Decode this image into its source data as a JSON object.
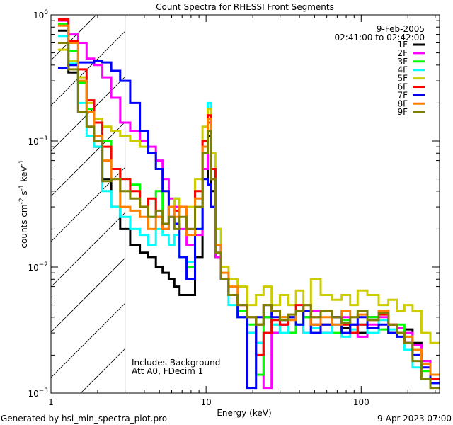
{
  "chart_data": {
    "type": "line",
    "title": "Count Spectra for RHESSI Front Segments",
    "xlabel": "Energy (keV)",
    "ylabel": {
      "base": "counts cm",
      "e1": "-2",
      "mid1": " s",
      "e2": "-1",
      "mid2": " keV",
      "e3": "-1"
    },
    "xscale": "log",
    "yscale": "log",
    "xlim": [
      1,
      320
    ],
    "ylim": [
      0.001,
      1
    ],
    "xticks": [
      {
        "v": 1,
        "label": "1"
      },
      {
        "v": 10,
        "label": "10"
      },
      {
        "v": 100,
        "label": "100"
      }
    ],
    "yticks": [
      {
        "v": 1,
        "exp": "0"
      },
      {
        "v": 0.1,
        "exp": "−1"
      },
      {
        "v": 0.01,
        "exp": "−2"
      },
      {
        "v": 0.001,
        "exp": "−3"
      }
    ],
    "ytick_base": "10",
    "date": "9-Feb-2005",
    "time_range": "02:41:00 to 02:42:00",
    "annotations": [
      "Includes Background",
      "Att A0, FDecim 1"
    ],
    "excluded_below_keV": 3,
    "legend_position": "top-right",
    "x": [
      1.2,
      1.4,
      1.6,
      1.8,
      2.0,
      2.3,
      2.6,
      3.0,
      3.5,
      4.0,
      4.5,
      5.0,
      5.5,
      6.0,
      6.5,
      7.0,
      8.0,
      9.0,
      10.0,
      10.5,
      11.0,
      12.0,
      13.0,
      15.0,
      17.0,
      20.0,
      22.0,
      25.0,
      28.0,
      32.0,
      36.0,
      40.0,
      45.0,
      50.0,
      60.0,
      70.0,
      80.0,
      90.0,
      100,
      120,
      140,
      160,
      180,
      200,
      230,
      260,
      300
    ],
    "series": [
      {
        "name": "1F",
        "color": "#000000",
        "values": [
          0.75,
          0.35,
          0.17,
          0.17,
          0.09,
          0.05,
          0.03,
          0.02,
          0.015,
          0.013,
          0.012,
          0.01,
          0.009,
          0.008,
          0.007,
          0.006,
          0.006,
          0.012,
          0.05,
          0.11,
          0.04,
          0.012,
          0.008,
          0.006,
          0.004,
          0.003,
          0.0035,
          0.004,
          0.003,
          0.0035,
          0.003,
          0.0045,
          0.004,
          0.0035,
          0.003,
          0.004,
          0.0033,
          0.0035,
          0.003,
          0.004,
          0.0045,
          0.0035,
          0.003,
          0.0032,
          0.0025,
          0.0018,
          0.0013
        ]
      },
      {
        "name": "2F",
        "color": "#ff00ff",
        "values": [
          0.9,
          0.7,
          0.6,
          0.45,
          0.4,
          0.32,
          0.22,
          0.14,
          0.12,
          0.1,
          0.09,
          0.07,
          0.05,
          0.035,
          0.03,
          0.02,
          0.015,
          0.018,
          0.06,
          0.14,
          0.05,
          0.012,
          0.008,
          0.006,
          0.005,
          0.003,
          0.0025,
          0.0011,
          0.003,
          0.0035,
          0.004,
          0.0035,
          0.003,
          0.0045,
          0.003,
          0.0035,
          0.004,
          0.003,
          0.0028,
          0.0035,
          0.004,
          0.003,
          0.0033,
          0.003,
          0.0024,
          0.0018,
          0.0014
        ]
      },
      {
        "name": "3F",
        "color": "#00ff00",
        "values": [
          0.85,
          0.52,
          0.29,
          0.18,
          0.14,
          0.1,
          0.06,
          0.05,
          0.045,
          0.03,
          0.025,
          0.04,
          0.02,
          0.03,
          0.035,
          0.012,
          0.01,
          0.02,
          0.08,
          0.15,
          0.06,
          0.02,
          0.008,
          0.006,
          0.0045,
          0.0035,
          0.0014,
          0.004,
          0.0035,
          0.004,
          0.003,
          0.0035,
          0.004,
          0.003,
          0.0035,
          0.003,
          0.0038,
          0.003,
          0.0035,
          0.004,
          0.0032,
          0.003,
          0.0035,
          0.0028,
          0.0022,
          0.0015,
          0.0013
        ]
      },
      {
        "name": "4F",
        "color": "#00ffff",
        "values": [
          0.68,
          0.41,
          0.2,
          0.11,
          0.09,
          0.04,
          0.03,
          0.025,
          0.02,
          0.018,
          0.015,
          0.02,
          0.018,
          0.015,
          0.018,
          0.012,
          0.011,
          0.02,
          0.1,
          0.2,
          0.05,
          0.015,
          0.008,
          0.005,
          0.004,
          0.003,
          0.0025,
          0.003,
          0.0035,
          0.003,
          0.004,
          0.0035,
          0.003,
          0.0033,
          0.003,
          0.0035,
          0.0028,
          0.0032,
          0.0035,
          0.003,
          0.0038,
          0.0032,
          0.0028,
          0.0022,
          0.0016,
          0.0013,
          0.0012
        ]
      },
      {
        "name": "5F",
        "color": "#cccc00",
        "values": [
          0.53,
          0.43,
          0.32,
          0.2,
          0.15,
          0.13,
          0.12,
          0.11,
          0.1,
          0.09,
          0.08,
          0.06,
          0.04,
          0.03,
          0.035,
          0.03,
          0.03,
          0.05,
          0.13,
          0.18,
          0.08,
          0.02,
          0.01,
          0.008,
          0.007,
          0.005,
          0.006,
          0.007,
          0.005,
          0.006,
          0.005,
          0.0065,
          0.005,
          0.008,
          0.006,
          0.0055,
          0.006,
          0.005,
          0.0065,
          0.006,
          0.005,
          0.0055,
          0.0045,
          0.005,
          0.0045,
          0.003,
          0.0025
        ]
      },
      {
        "name": "6F",
        "color": "#ff0000",
        "values": [
          0.92,
          0.62,
          0.37,
          0.21,
          0.14,
          0.09,
          0.06,
          0.05,
          0.04,
          0.03,
          0.035,
          0.025,
          0.02,
          0.03,
          0.028,
          0.03,
          0.02,
          0.04,
          0.1,
          0.16,
          0.06,
          0.015,
          0.008,
          0.006,
          0.005,
          0.004,
          0.002,
          0.003,
          0.0038,
          0.0035,
          0.004,
          0.005,
          0.0045,
          0.004,
          0.0035,
          0.004,
          0.0035,
          0.003,
          0.0035,
          0.0038,
          0.0042,
          0.0035,
          0.003,
          0.0025,
          0.0022,
          0.0017,
          0.0013
        ]
      },
      {
        "name": "7F",
        "color": "#0000ff",
        "values": [
          0.38,
          0.4,
          0.42,
          0.42,
          0.43,
          0.42,
          0.36,
          0.3,
          0.2,
          0.12,
          0.08,
          0.06,
          0.04,
          0.025,
          0.022,
          0.012,
          0.008,
          0.02,
          0.05,
          0.045,
          0.03,
          0.015,
          0.008,
          0.006,
          0.004,
          0.0011,
          0.004,
          0.005,
          0.004,
          0.0038,
          0.004,
          0.0035,
          0.0045,
          0.003,
          0.0035,
          0.004,
          0.003,
          0.0035,
          0.004,
          0.0033,
          0.0035,
          0.003,
          0.0028,
          0.0025,
          0.002,
          0.0016,
          0.0012
        ]
      },
      {
        "name": "8F",
        "color": "#ff8000",
        "values": [
          0.82,
          0.6,
          0.3,
          0.17,
          0.11,
          0.07,
          0.05,
          0.03,
          0.028,
          0.025,
          0.02,
          0.025,
          0.02,
          0.03,
          0.025,
          0.03,
          0.018,
          0.035,
          0.09,
          0.15,
          0.05,
          0.015,
          0.009,
          0.007,
          0.005,
          0.004,
          0.0035,
          0.005,
          0.0045,
          0.004,
          0.0038,
          0.0045,
          0.005,
          0.0035,
          0.004,
          0.0035,
          0.0045,
          0.004,
          0.0042,
          0.0038,
          0.0045,
          0.0035,
          0.003,
          0.0028,
          0.0022,
          0.0017,
          0.0014
        ]
      },
      {
        "name": "9F",
        "color": "#808000",
        "values": [
          0.6,
          0.37,
          0.17,
          0.13,
          0.1,
          0.048,
          0.05,
          0.04,
          0.035,
          0.03,
          0.025,
          0.028,
          0.022,
          0.025,
          0.02,
          0.025,
          0.02,
          0.03,
          0.08,
          0.12,
          0.05,
          0.013,
          0.008,
          0.006,
          0.005,
          0.004,
          0.0035,
          0.005,
          0.0045,
          0.0038,
          0.0042,
          0.0045,
          0.005,
          0.004,
          0.0045,
          0.004,
          0.0036,
          0.004,
          0.0045,
          0.0038,
          0.0043,
          0.0035,
          0.003,
          0.0025,
          0.0018,
          0.0013,
          0.0011
        ]
      }
    ]
  },
  "footer": {
    "generated_by": "Generated by hsi_min_spectra_plot.pro",
    "timestamp": "9-Apr-2023 07:00"
  }
}
